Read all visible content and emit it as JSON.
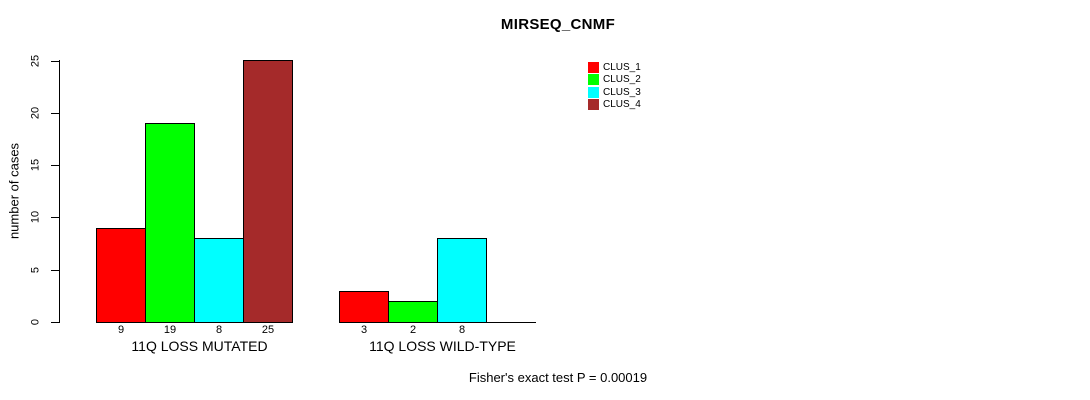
{
  "chart_data": {
    "type": "bar",
    "title": "MIRSEQ_CNMF",
    "ylabel": "number of cases",
    "xlabel": "",
    "ylim": [
      0,
      25
    ],
    "yticks": [
      0,
      5,
      10,
      15,
      20,
      25
    ],
    "grid": false,
    "legend_position": "top-right",
    "categories": [
      "11Q LOSS MUTATED",
      "11Q LOSS WILD-TYPE"
    ],
    "series": [
      {
        "name": "CLUS_1",
        "color": "#ff0000",
        "values": [
          9,
          3
        ]
      },
      {
        "name": "CLUS_2",
        "color": "#00ff00",
        "values": [
          19,
          2
        ]
      },
      {
        "name": "CLUS_3",
        "color": "#00ffff",
        "values": [
          8,
          8
        ]
      },
      {
        "name": "CLUS_4",
        "color": "#a52a2a",
        "values": [
          25,
          0
        ]
      }
    ],
    "bar_value_labels_shown": true,
    "annotation": "Fisher's exact test P = 0.00019"
  }
}
